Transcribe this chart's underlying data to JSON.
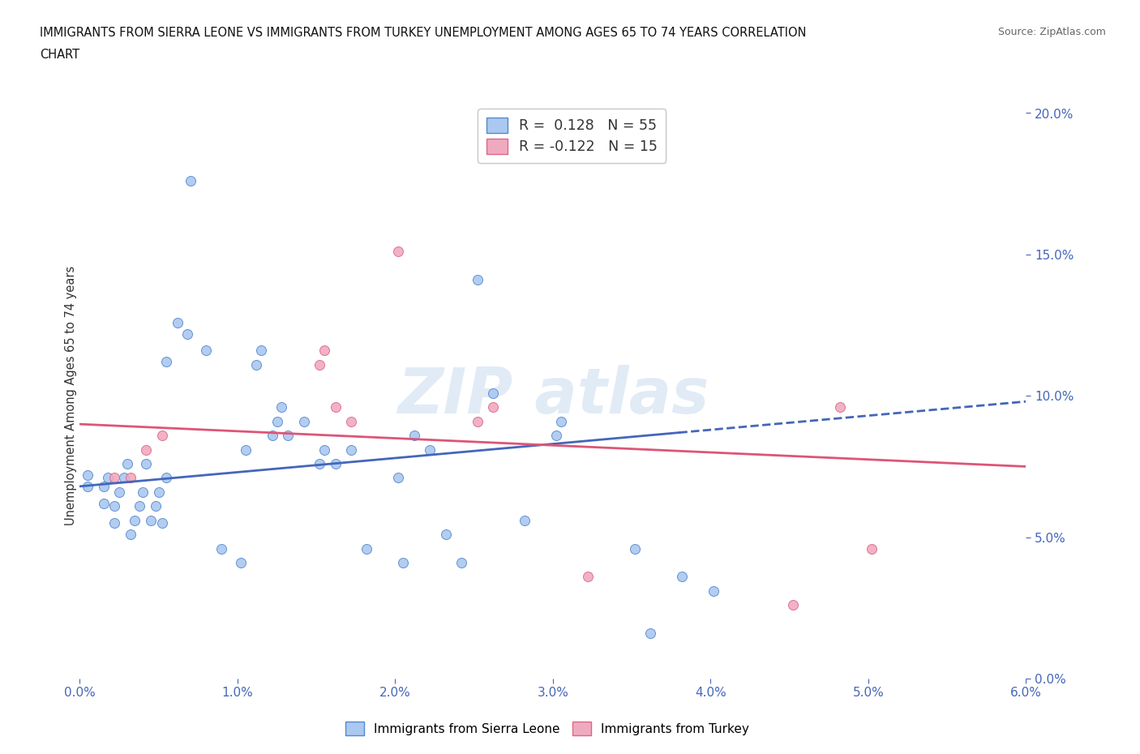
{
  "title_line1": "IMMIGRANTS FROM SIERRA LEONE VS IMMIGRANTS FROM TURKEY UNEMPLOYMENT AMONG AGES 65 TO 74 YEARS CORRELATION",
  "title_line2": "CHART",
  "source": "Source: ZipAtlas.com",
  "ylabel_label": "Unemployment Among Ages 65 to 74 years",
  "xmin": 0.0,
  "xmax": 6.0,
  "ymin": 0.0,
  "ymax": 20.0,
  "yticks": [
    0.0,
    5.0,
    10.0,
    15.0,
    20.0
  ],
  "xticks": [
    0.0,
    1.0,
    2.0,
    3.0,
    4.0,
    5.0,
    6.0
  ],
  "blue_R": 0.128,
  "blue_N": 55,
  "pink_R": -0.122,
  "pink_N": 15,
  "blue_color": "#aac8f0",
  "pink_color": "#f0aabf",
  "blue_edge_color": "#5588cc",
  "pink_edge_color": "#dd6688",
  "blue_line_color": "#4466bb",
  "pink_line_color": "#dd5577",
  "blue_points": [
    [
      0.05,
      6.8
    ],
    [
      0.05,
      7.2
    ],
    [
      0.15,
      6.2
    ],
    [
      0.15,
      6.8
    ],
    [
      0.18,
      7.1
    ],
    [
      0.22,
      5.5
    ],
    [
      0.22,
      6.1
    ],
    [
      0.25,
      6.6
    ],
    [
      0.28,
      7.1
    ],
    [
      0.3,
      7.6
    ],
    [
      0.32,
      5.1
    ],
    [
      0.35,
      5.6
    ],
    [
      0.38,
      6.1
    ],
    [
      0.4,
      6.6
    ],
    [
      0.42,
      7.6
    ],
    [
      0.45,
      5.6
    ],
    [
      0.48,
      6.1
    ],
    [
      0.5,
      6.6
    ],
    [
      0.52,
      5.5
    ],
    [
      0.55,
      7.1
    ],
    [
      0.55,
      11.2
    ],
    [
      0.62,
      12.6
    ],
    [
      0.68,
      12.2
    ],
    [
      0.7,
      17.6
    ],
    [
      0.8,
      11.6
    ],
    [
      0.9,
      4.6
    ],
    [
      1.02,
      4.1
    ],
    [
      1.05,
      8.1
    ],
    [
      1.12,
      11.1
    ],
    [
      1.15,
      11.6
    ],
    [
      1.22,
      8.6
    ],
    [
      1.25,
      9.1
    ],
    [
      1.28,
      9.6
    ],
    [
      1.32,
      8.6
    ],
    [
      1.42,
      9.1
    ],
    [
      1.52,
      7.6
    ],
    [
      1.55,
      8.1
    ],
    [
      1.62,
      7.6
    ],
    [
      1.72,
      8.1
    ],
    [
      1.82,
      4.6
    ],
    [
      2.02,
      7.1
    ],
    [
      2.05,
      4.1
    ],
    [
      2.12,
      8.6
    ],
    [
      2.22,
      8.1
    ],
    [
      2.32,
      5.1
    ],
    [
      2.42,
      4.1
    ],
    [
      2.52,
      14.1
    ],
    [
      2.62,
      10.1
    ],
    [
      2.82,
      5.6
    ],
    [
      3.02,
      8.6
    ],
    [
      3.05,
      9.1
    ],
    [
      3.52,
      4.6
    ],
    [
      3.62,
      1.6
    ],
    [
      3.82,
      3.6
    ],
    [
      4.02,
      3.1
    ]
  ],
  "pink_points": [
    [
      0.22,
      7.1
    ],
    [
      0.32,
      7.1
    ],
    [
      0.42,
      8.1
    ],
    [
      0.52,
      8.6
    ],
    [
      1.52,
      11.1
    ],
    [
      1.55,
      11.6
    ],
    [
      1.62,
      9.6
    ],
    [
      1.72,
      9.1
    ],
    [
      2.02,
      15.1
    ],
    [
      2.52,
      9.1
    ],
    [
      2.62,
      9.6
    ],
    [
      3.22,
      3.6
    ],
    [
      4.52,
      2.6
    ],
    [
      4.82,
      9.6
    ],
    [
      5.02,
      4.6
    ]
  ],
  "blue_line_x0": 0.0,
  "blue_line_y0": 6.8,
  "blue_line_x1": 6.0,
  "blue_line_y1": 9.8,
  "blue_solid_xend": 3.8,
  "pink_line_x0": 0.0,
  "pink_line_y0": 9.0,
  "pink_line_x1": 6.0,
  "pink_line_y1": 7.5
}
